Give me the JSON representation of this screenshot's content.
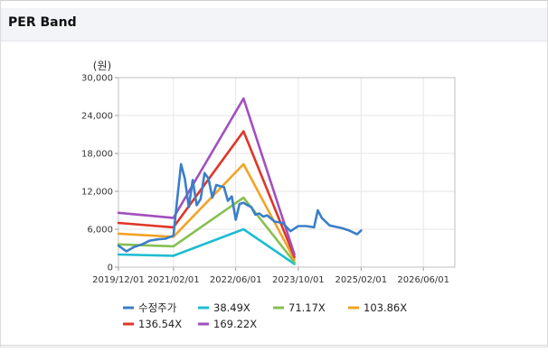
{
  "panel": {
    "title": "PER Band"
  },
  "chart_data": {
    "type": "line",
    "title": "PER Band",
    "unit_label": "(원)",
    "xlabel": "",
    "ylabel": "",
    "ylim": [
      0,
      30000
    ],
    "xlim": [
      "2019/12/01",
      "2027/02/01"
    ],
    "y_ticks": [
      0,
      6000,
      12000,
      18000,
      24000,
      30000
    ],
    "y_tick_labels": [
      "0",
      "6,000",
      "12,000",
      "18,000",
      "24,000",
      "30,000"
    ],
    "x_ticks": [
      "2019/12/01",
      "2021/02/01",
      "2022/06/01",
      "2023/10/01",
      "2025/02/01",
      "2026/06/01"
    ],
    "grid": true,
    "legend_position": "bottom",
    "series": [
      {
        "name": "수정주가",
        "color": "#3a7fc8",
        "points": [
          [
            "2019/12/01",
            3400
          ],
          [
            "2020/02/01",
            2500
          ],
          [
            "2020/04/01",
            3200
          ],
          [
            "2020/06/01",
            3600
          ],
          [
            "2020/08/01",
            4200
          ],
          [
            "2020/10/01",
            4400
          ],
          [
            "2020/12/01",
            4500
          ],
          [
            "2021/02/01",
            5000
          ],
          [
            "2021/03/01",
            10500
          ],
          [
            "2021/04/01",
            16300
          ],
          [
            "2021/05/01",
            14000
          ],
          [
            "2021/06/01",
            9500
          ],
          [
            "2021/07/01",
            13800
          ],
          [
            "2021/08/01",
            9800
          ],
          [
            "2021/09/01",
            10800
          ],
          [
            "2021/10/01",
            14900
          ],
          [
            "2021/11/01",
            14000
          ],
          [
            "2021/12/01",
            11000
          ],
          [
            "2022/01/01",
            13000
          ],
          [
            "2022/02/01",
            12800
          ],
          [
            "2022/03/01",
            12700
          ],
          [
            "2022/04/01",
            10500
          ],
          [
            "2022/05/01",
            11200
          ],
          [
            "2022/06/01",
            7500
          ],
          [
            "2022/07/01",
            10000
          ],
          [
            "2022/08/01",
            10200
          ],
          [
            "2022/09/01",
            9800
          ],
          [
            "2022/10/01",
            9500
          ],
          [
            "2022/11/01",
            8300
          ],
          [
            "2022/12/01",
            8500
          ],
          [
            "2023/01/01",
            8000
          ],
          [
            "2023/02/01",
            8200
          ],
          [
            "2023/04/01",
            7200
          ],
          [
            "2023/06/01",
            7000
          ],
          [
            "2023/08/01",
            5700
          ],
          [
            "2023/10/01",
            6500
          ],
          [
            "2023/12/01",
            6500
          ],
          [
            "2024/02/01",
            6300
          ],
          [
            "2024/03/01",
            9000
          ],
          [
            "2024/04/01",
            7800
          ],
          [
            "2024/06/01",
            6600
          ],
          [
            "2024/09/01",
            6200
          ],
          [
            "2024/11/01",
            5800
          ],
          [
            "2025/01/01",
            5200
          ],
          [
            "2025/02/01",
            5800
          ]
        ]
      },
      {
        "name": "38.49X",
        "color": "#1fbcd1",
        "points": [
          [
            "2019/12/01",
            2000
          ],
          [
            "2021/02/01",
            1800
          ],
          [
            "2022/08/01",
            6000
          ],
          [
            "2023/09/01",
            500
          ]
        ]
      },
      {
        "name": "71.17X",
        "color": "#86c04f",
        "points": [
          [
            "2019/12/01",
            3600
          ],
          [
            "2021/02/01",
            3300
          ],
          [
            "2022/08/01",
            11000
          ],
          [
            "2023/09/01",
            800
          ]
        ]
      },
      {
        "name": "103.86X",
        "color": "#f3a326",
        "points": [
          [
            "2019/12/01",
            5300
          ],
          [
            "2021/02/01",
            4800
          ],
          [
            "2022/08/01",
            16300
          ],
          [
            "2023/09/01",
            1200
          ]
        ]
      },
      {
        "name": "136.54X",
        "color": "#e03628",
        "points": [
          [
            "2019/12/01",
            7000
          ],
          [
            "2021/02/01",
            6300
          ],
          [
            "2022/08/01",
            21500
          ],
          [
            "2023/09/01",
            1600
          ]
        ]
      },
      {
        "name": "169.22X",
        "color": "#a24fbf",
        "points": [
          [
            "2019/12/01",
            8600
          ],
          [
            "2021/02/01",
            7800
          ],
          [
            "2022/08/01",
            26700
          ],
          [
            "2023/09/01",
            2000
          ]
        ]
      }
    ]
  }
}
